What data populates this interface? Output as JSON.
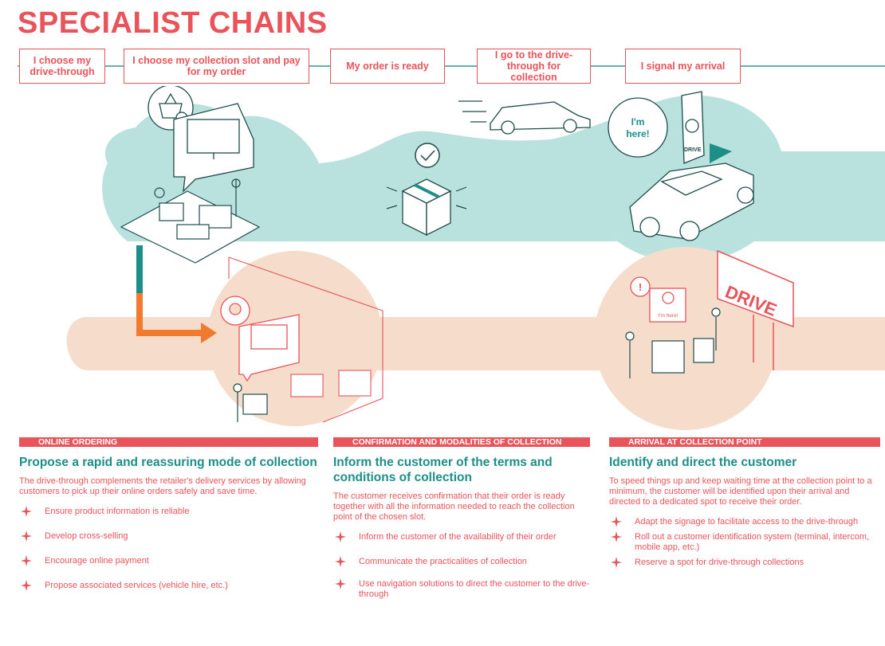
{
  "title": "SPECIALIST CHAINS",
  "steps": [
    {
      "label": "I choose my drive-through"
    },
    {
      "label": "I choose my collection slot and pay for my order"
    },
    {
      "label": "My order is ready"
    },
    {
      "label": "I go to the drive-through for collection"
    },
    {
      "label": "I signal my arrival"
    }
  ],
  "illustration": {
    "speech_text": "I'm here!",
    "sign_text": "DRIVE",
    "terminal_text": "DRIVE",
    "small_bubble_text": "I'm here!"
  },
  "sections": [
    {
      "tag": "ONLINE ORDERING",
      "heading": "Propose a rapid and reassuring mode of collection",
      "text": "The drive-through complements the retailer's delivery services by allowing customers to pick up their online orders safely and save time.",
      "bullets": [
        "Ensure product information is reliable",
        "Develop cross-selling",
        "Encourage online payment",
        "Propose associated services (vehicle hire, etc.)"
      ]
    },
    {
      "tag": "CONFIRMATION AND MODALITIES OF COLLECTION",
      "heading": "Inform the customer of the terms and conditions of collection",
      "text": "The customer receives confirmation that their order is ready together with all the information needed to reach the collection point of the chosen slot.",
      "bullets": [
        "Inform the customer of the availability of their order",
        "Communicate the practicalities of collection",
        "Use navigation solutions to direct the customer to the drive-through"
      ]
    },
    {
      "tag": "ARRIVAL AT COLLECTION POINT",
      "heading": "Identify and direct the customer",
      "text": "To speed things up and keep waiting time at the collection point to a minimum, the customer will be identified upon their arrival and directed to a dedicated spot to receive their order.",
      "bullets": [
        "Adapt the signage to facilitate access to the drive-through",
        "Roll out a customer identification system (terminal, intercom, mobile app, etc.)",
        "Reserve a spot for drive-through collections"
      ]
    }
  ],
  "colors": {
    "accent": "#e8545a",
    "teal": "#1d8f88",
    "teal_light": "#b9e1dd",
    "peach": "#f6dccb",
    "orange": "#f07a2e"
  }
}
